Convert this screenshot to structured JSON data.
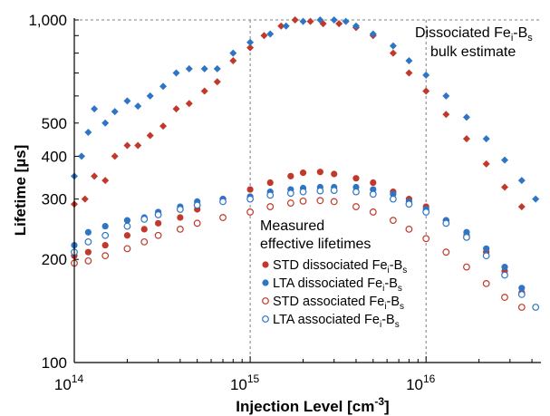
{
  "chart_data": {
    "type": "scatter",
    "xlabel": "Injection Level [cm",
    "xlabel_sup": "-3",
    "xlabel_end": "]",
    "ylabel": "Lifetime [µs]",
    "x_scale": "log",
    "y_scale": "log",
    "xlim": [
      100000000000000.0,
      4.5e+16
    ],
    "ylim": [
      100,
      1000
    ],
    "x_ticks": [
      {
        "value": 100000000000000.0,
        "base": "10",
        "exp": "14"
      },
      {
        "value": 1000000000000000.0,
        "base": "10",
        "exp": "15"
      },
      {
        "value": 1e+16,
        "base": "10",
        "exp": "16"
      }
    ],
    "y_ticks": [
      {
        "value": 100,
        "label": "100"
      },
      {
        "value": 200,
        "label": "200"
      },
      {
        "value": 300,
        "label": "300"
      },
      {
        "value": 400,
        "label": "400"
      },
      {
        "value": 500,
        "label": "500"
      },
      {
        "value": 1000,
        "label": "1,000"
      }
    ],
    "gridlines_dashed_x": [
      1000000000000000.0,
      1e+16
    ],
    "gridline_dashed_y": 1000,
    "annotation": {
      "line1": "Dissociated Fe",
      "line1_sub1": "i",
      "line1_mid": "-B",
      "line1_sub2": "s",
      "line2": "bulk estimate"
    },
    "legend_heading": [
      "Measured",
      "effective lifetimes"
    ],
    "legend_placement": "center-left",
    "series": [
      {
        "name": "STD dissociated Fe",
        "sub1": "i",
        "mid": "-B",
        "sub2": "s",
        "group": "bulk",
        "marker": "diamond",
        "filled": true,
        "color": "#c0392b",
        "points": [
          [
            100000000000000.0,
            290
          ],
          [
            115000000000000.0,
            300
          ],
          [
            130000000000000.0,
            350
          ],
          [
            150000000000000.0,
            340
          ],
          [
            170000000000000.0,
            400
          ],
          [
            200000000000000.0,
            430
          ],
          [
            230000000000000.0,
            430
          ],
          [
            270000000000000.0,
            460
          ],
          [
            320000000000000.0,
            490
          ],
          [
            380000000000000.0,
            550
          ],
          [
            450000000000000.0,
            570
          ],
          [
            550000000000000.0,
            620
          ],
          [
            650000000000000.0,
            660
          ],
          [
            800000000000000.0,
            760
          ],
          [
            1000000000000000.0,
            830
          ],
          [
            1200000000000000.0,
            900
          ],
          [
            1500000000000000.0,
            960
          ],
          [
            1800000000000000.0,
            1000
          ],
          [
            2200000000000000.0,
            990
          ],
          [
            2600000000000000.0,
            975
          ],
          [
            3200000000000000.0,
            975
          ],
          [
            4000000000000000.0,
            950
          ],
          [
            5000000000000000.0,
            900
          ],
          [
            6500000000000000.0,
            800
          ],
          [
            8000000000000000.0,
            700
          ],
          [
            1e+16,
            620
          ],
          [
            1.3e+16,
            530
          ],
          [
            1.7e+16,
            450
          ],
          [
            2.2e+16,
            380
          ],
          [
            2.8e+16,
            325
          ],
          [
            3.5e+16,
            285
          ]
        ]
      },
      {
        "name": "LTA dissociated Fe",
        "sub1": "i",
        "mid": "-B",
        "sub2": "s",
        "group": "bulk",
        "marker": "diamond",
        "filled": true,
        "color": "#2e75c6",
        "points": [
          [
            100000000000000.0,
            350
          ],
          [
            110000000000000.0,
            400
          ],
          [
            120000000000000.0,
            470
          ],
          [
            130000000000000.0,
            550
          ],
          [
            150000000000000.0,
            500
          ],
          [
            170000000000000.0,
            540
          ],
          [
            200000000000000.0,
            580
          ],
          [
            230000000000000.0,
            560
          ],
          [
            270000000000000.0,
            600
          ],
          [
            320000000000000.0,
            640
          ],
          [
            380000000000000.0,
            700
          ],
          [
            450000000000000.0,
            720
          ],
          [
            550000000000000.0,
            720
          ],
          [
            650000000000000.0,
            720
          ],
          [
            800000000000000.0,
            800
          ],
          [
            1000000000000000.0,
            860
          ],
          [
            1300000000000000.0,
            910
          ],
          [
            1600000000000000.0,
            960
          ],
          [
            2000000000000000.0,
            990
          ],
          [
            2500000000000000.0,
            1000
          ],
          [
            3000000000000000.0,
            1000
          ],
          [
            3500000000000000.0,
            990
          ],
          [
            4000000000000000.0,
            960
          ],
          [
            5000000000000000.0,
            910
          ],
          [
            6500000000000000.0,
            840
          ],
          [
            8000000000000000.0,
            760
          ],
          [
            1e+16,
            690
          ],
          [
            1.3e+16,
            600
          ],
          [
            1.7e+16,
            520
          ],
          [
            2.2e+16,
            450
          ],
          [
            2.8e+16,
            390
          ],
          [
            3.5e+16,
            340
          ],
          [
            4.2e+16,
            300
          ]
        ]
      },
      {
        "name": "STD dissociated Fe",
        "sub1": "i",
        "mid": "-B",
        "sub2": "s",
        "group": "effective",
        "marker": "circle",
        "filled": true,
        "color": "#c0392b",
        "points": [
          [
            100000000000000.0,
            205
          ],
          [
            120000000000000.0,
            210
          ],
          [
            150000000000000.0,
            220
          ],
          [
            200000000000000.0,
            235
          ],
          [
            250000000000000.0,
            245
          ],
          [
            300000000000000.0,
            255
          ],
          [
            400000000000000.0,
            265
          ],
          [
            500000000000000.0,
            280
          ],
          [
            700000000000000.0,
            300
          ],
          [
            1000000000000000.0,
            320
          ],
          [
            1300000000000000.0,
            335
          ],
          [
            1700000000000000.0,
            350
          ],
          [
            2000000000000000.0,
            358
          ],
          [
            2500000000000000.0,
            360
          ],
          [
            3000000000000000.0,
            355
          ],
          [
            4000000000000000.0,
            345
          ],
          [
            5000000000000000.0,
            335
          ],
          [
            6500000000000000.0,
            315
          ],
          [
            8000000000000000.0,
            300
          ],
          [
            1e+16,
            285
          ],
          [
            1.3e+16,
            260
          ],
          [
            1.7e+16,
            235
          ],
          [
            2.2e+16,
            210
          ],
          [
            2.8e+16,
            185
          ],
          [
            3.5e+16,
            160
          ]
        ]
      },
      {
        "name": "LTA dissociated Fe",
        "sub1": "i",
        "mid": "-B",
        "sub2": "s",
        "group": "effective",
        "marker": "circle",
        "filled": true,
        "color": "#2e75c6",
        "points": [
          [
            100000000000000.0,
            220
          ],
          [
            120000000000000.0,
            240
          ],
          [
            150000000000000.0,
            250
          ],
          [
            200000000000000.0,
            260
          ],
          [
            250000000000000.0,
            265
          ],
          [
            300000000000000.0,
            275
          ],
          [
            400000000000000.0,
            285
          ],
          [
            500000000000000.0,
            295
          ],
          [
            700000000000000.0,
            300
          ],
          [
            1000000000000000.0,
            305
          ],
          [
            1300000000000000.0,
            315
          ],
          [
            1700000000000000.0,
            320
          ],
          [
            2000000000000000.0,
            323
          ],
          [
            2500000000000000.0,
            325
          ],
          [
            3000000000000000.0,
            325
          ],
          [
            4000000000000000.0,
            325
          ],
          [
            5000000000000000.0,
            320
          ],
          [
            6500000000000000.0,
            310
          ],
          [
            8000000000000000.0,
            295
          ],
          [
            1e+16,
            280
          ],
          [
            1.3e+16,
            260
          ],
          [
            1.7e+16,
            240
          ],
          [
            2.2e+16,
            215
          ],
          [
            2.8e+16,
            190
          ],
          [
            3.5e+16,
            165
          ]
        ]
      },
      {
        "name": "STD associated Fe",
        "sub1": "i",
        "mid": "-B",
        "sub2": "s",
        "group": "effective",
        "marker": "circle",
        "filled": false,
        "color": "#c0392b",
        "points": [
          [
            100000000000000.0,
            195
          ],
          [
            120000000000000.0,
            198
          ],
          [
            150000000000000.0,
            205
          ],
          [
            200000000000000.0,
            215
          ],
          [
            250000000000000.0,
            225
          ],
          [
            300000000000000.0,
            235
          ],
          [
            400000000000000.0,
            245
          ],
          [
            500000000000000.0,
            255
          ],
          [
            700000000000000.0,
            265
          ],
          [
            1000000000000000.0,
            275
          ],
          [
            1300000000000000.0,
            285
          ],
          [
            1700000000000000.0,
            292
          ],
          [
            2000000000000000.0,
            296
          ],
          [
            2500000000000000.0,
            297
          ],
          [
            3000000000000000.0,
            295
          ],
          [
            4000000000000000.0,
            285
          ],
          [
            5000000000000000.0,
            275
          ],
          [
            6500000000000000.0,
            260
          ],
          [
            8000000000000000.0,
            245
          ],
          [
            1e+16,
            230
          ],
          [
            1.3e+16,
            210
          ],
          [
            1.7e+16,
            190
          ],
          [
            2.2e+16,
            170
          ],
          [
            2.8e+16,
            155
          ],
          [
            3.5e+16,
            145
          ]
        ]
      },
      {
        "name": "LTA associated Fe",
        "sub1": "i",
        "mid": "-B",
        "sub2": "s",
        "group": "effective",
        "marker": "circle",
        "filled": false,
        "color": "#2e75c6",
        "points": [
          [
            100000000000000.0,
            210
          ],
          [
            120000000000000.0,
            225
          ],
          [
            150000000000000.0,
            235
          ],
          [
            200000000000000.0,
            250
          ],
          [
            250000000000000.0,
            262
          ],
          [
            300000000000000.0,
            270
          ],
          [
            400000000000000.0,
            280
          ],
          [
            500000000000000.0,
            288
          ],
          [
            700000000000000.0,
            295
          ],
          [
            1000000000000000.0,
            300
          ],
          [
            1300000000000000.0,
            308
          ],
          [
            1700000000000000.0,
            312
          ],
          [
            2000000000000000.0,
            315
          ],
          [
            2500000000000000.0,
            317
          ],
          [
            3000000000000000.0,
            318
          ],
          [
            4000000000000000.0,
            315
          ],
          [
            5000000000000000.0,
            310
          ],
          [
            6500000000000000.0,
            300
          ],
          [
            8000000000000000.0,
            290
          ],
          [
            1e+16,
            275
          ],
          [
            1.3e+16,
            255
          ],
          [
            1.7e+16,
            232
          ],
          [
            2.2e+16,
            205
          ],
          [
            2.8e+16,
            180
          ],
          [
            3.5e+16,
            158
          ],
          [
            4.2e+16,
            145
          ]
        ]
      }
    ]
  }
}
